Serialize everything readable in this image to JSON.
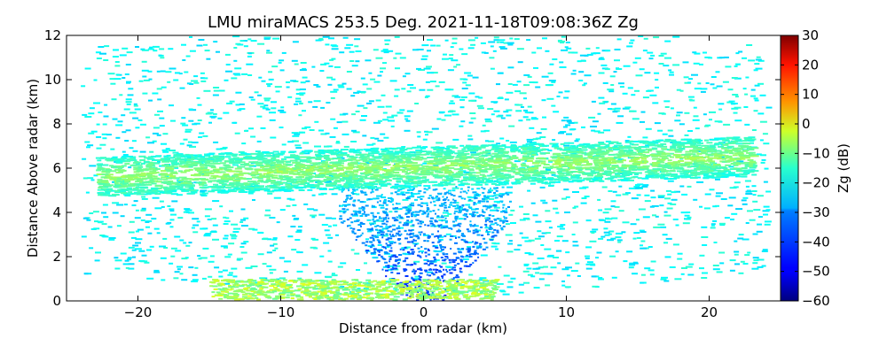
{
  "chart_data": {
    "type": "heatmap",
    "title": "LMU miraMACS 253.5 Deg. 2021-11-18T09:08:36Z  Zg",
    "xlabel": "Distance from radar (km)",
    "ylabel": "Distance Above radar  (km)",
    "xlim": [
      -25,
      25
    ],
    "ylim": [
      0,
      12
    ],
    "x_ticks": [
      -20,
      -10,
      0,
      10,
      20
    ],
    "x_tick_labels": [
      "−20",
      "−10",
      "0",
      "10",
      "20"
    ],
    "y_ticks": [
      0,
      2,
      4,
      6,
      8,
      10,
      12
    ],
    "y_tick_labels": [
      "0",
      "2",
      "4",
      "6",
      "8",
      "10",
      "12"
    ],
    "colorbar": {
      "label": "Zg (dB)",
      "range": [
        -60,
        30
      ],
      "ticks": [
        30,
        20,
        10,
        0,
        -10,
        -20,
        -30,
        -40,
        -50,
        -60
      ],
      "tick_labels": [
        "30",
        "20",
        "10",
        "0",
        "−10",
        "−20",
        "−30",
        "−40",
        "−50",
        "−60"
      ],
      "colormap": "jet"
    },
    "features": [
      {
        "region": "cloud layer",
        "x_range": [
          -23,
          23
        ],
        "height_km": [
          5.3,
          7.2
        ],
        "zg_db": [
          -20,
          -8
        ]
      },
      {
        "region": "clear-air scatter",
        "x_range": [
          -24,
          24
        ],
        "height_km": [
          0.5,
          12
        ],
        "zg_db": [
          -30,
          -20
        ]
      },
      {
        "region": "near-radar low returns",
        "x_range": [
          -5,
          5
        ],
        "height_km": [
          0,
          5
        ],
        "zg_db": [
          -55,
          -30
        ]
      },
      {
        "region": "surface layer",
        "x_range": [
          -15,
          5
        ],
        "height_km": [
          0,
          1
        ],
        "zg_db": [
          -20,
          -5
        ]
      }
    ]
  }
}
